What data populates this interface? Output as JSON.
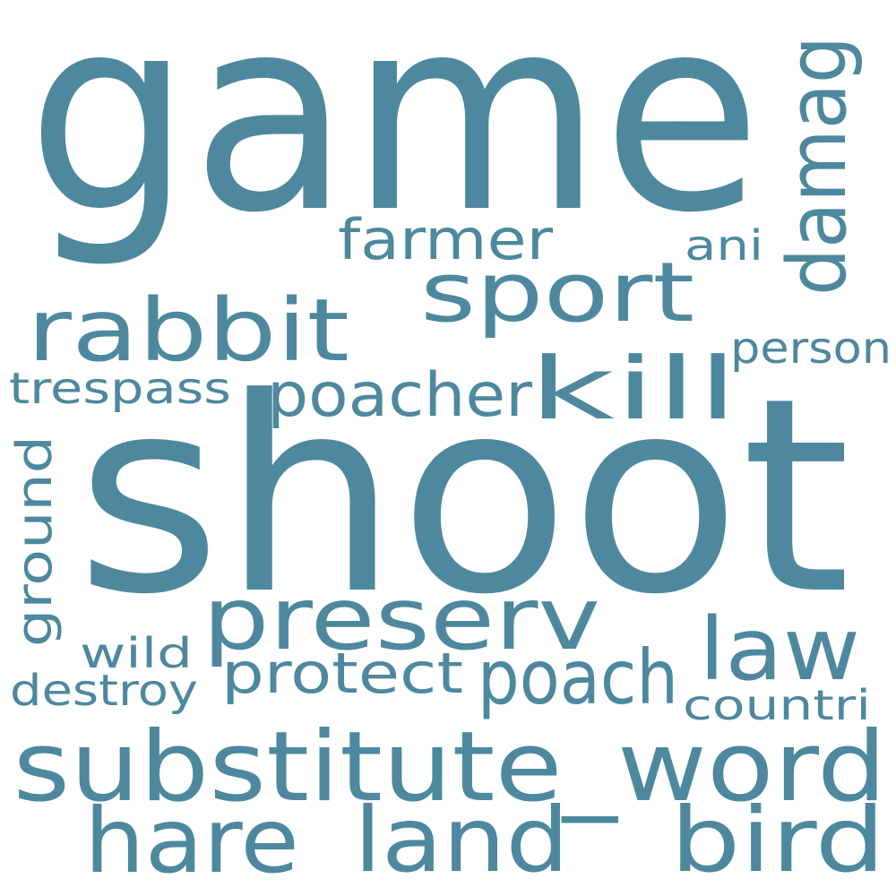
{
  "word_cloud": {
    "color": "#4d889e",
    "background": "#ffffff",
    "words": [
      {
        "text": "game"
      },
      {
        "text": "shoot"
      },
      {
        "text": "substitute_word"
      },
      {
        "text": "preserv"
      },
      {
        "text": "rabbit"
      },
      {
        "text": "sport"
      },
      {
        "text": "kill"
      },
      {
        "text": "law"
      },
      {
        "text": "poach"
      },
      {
        "text": "hare"
      },
      {
        "text": "land"
      },
      {
        "text": "bird"
      },
      {
        "text": "damag"
      },
      {
        "text": "farmer"
      },
      {
        "text": "poacher"
      },
      {
        "text": "protect"
      },
      {
        "text": "trespass"
      },
      {
        "text": "person"
      },
      {
        "text": "ani"
      },
      {
        "text": "ground"
      },
      {
        "text": "wild"
      },
      {
        "text": "destroy"
      },
      {
        "text": "countri"
      }
    ]
  }
}
